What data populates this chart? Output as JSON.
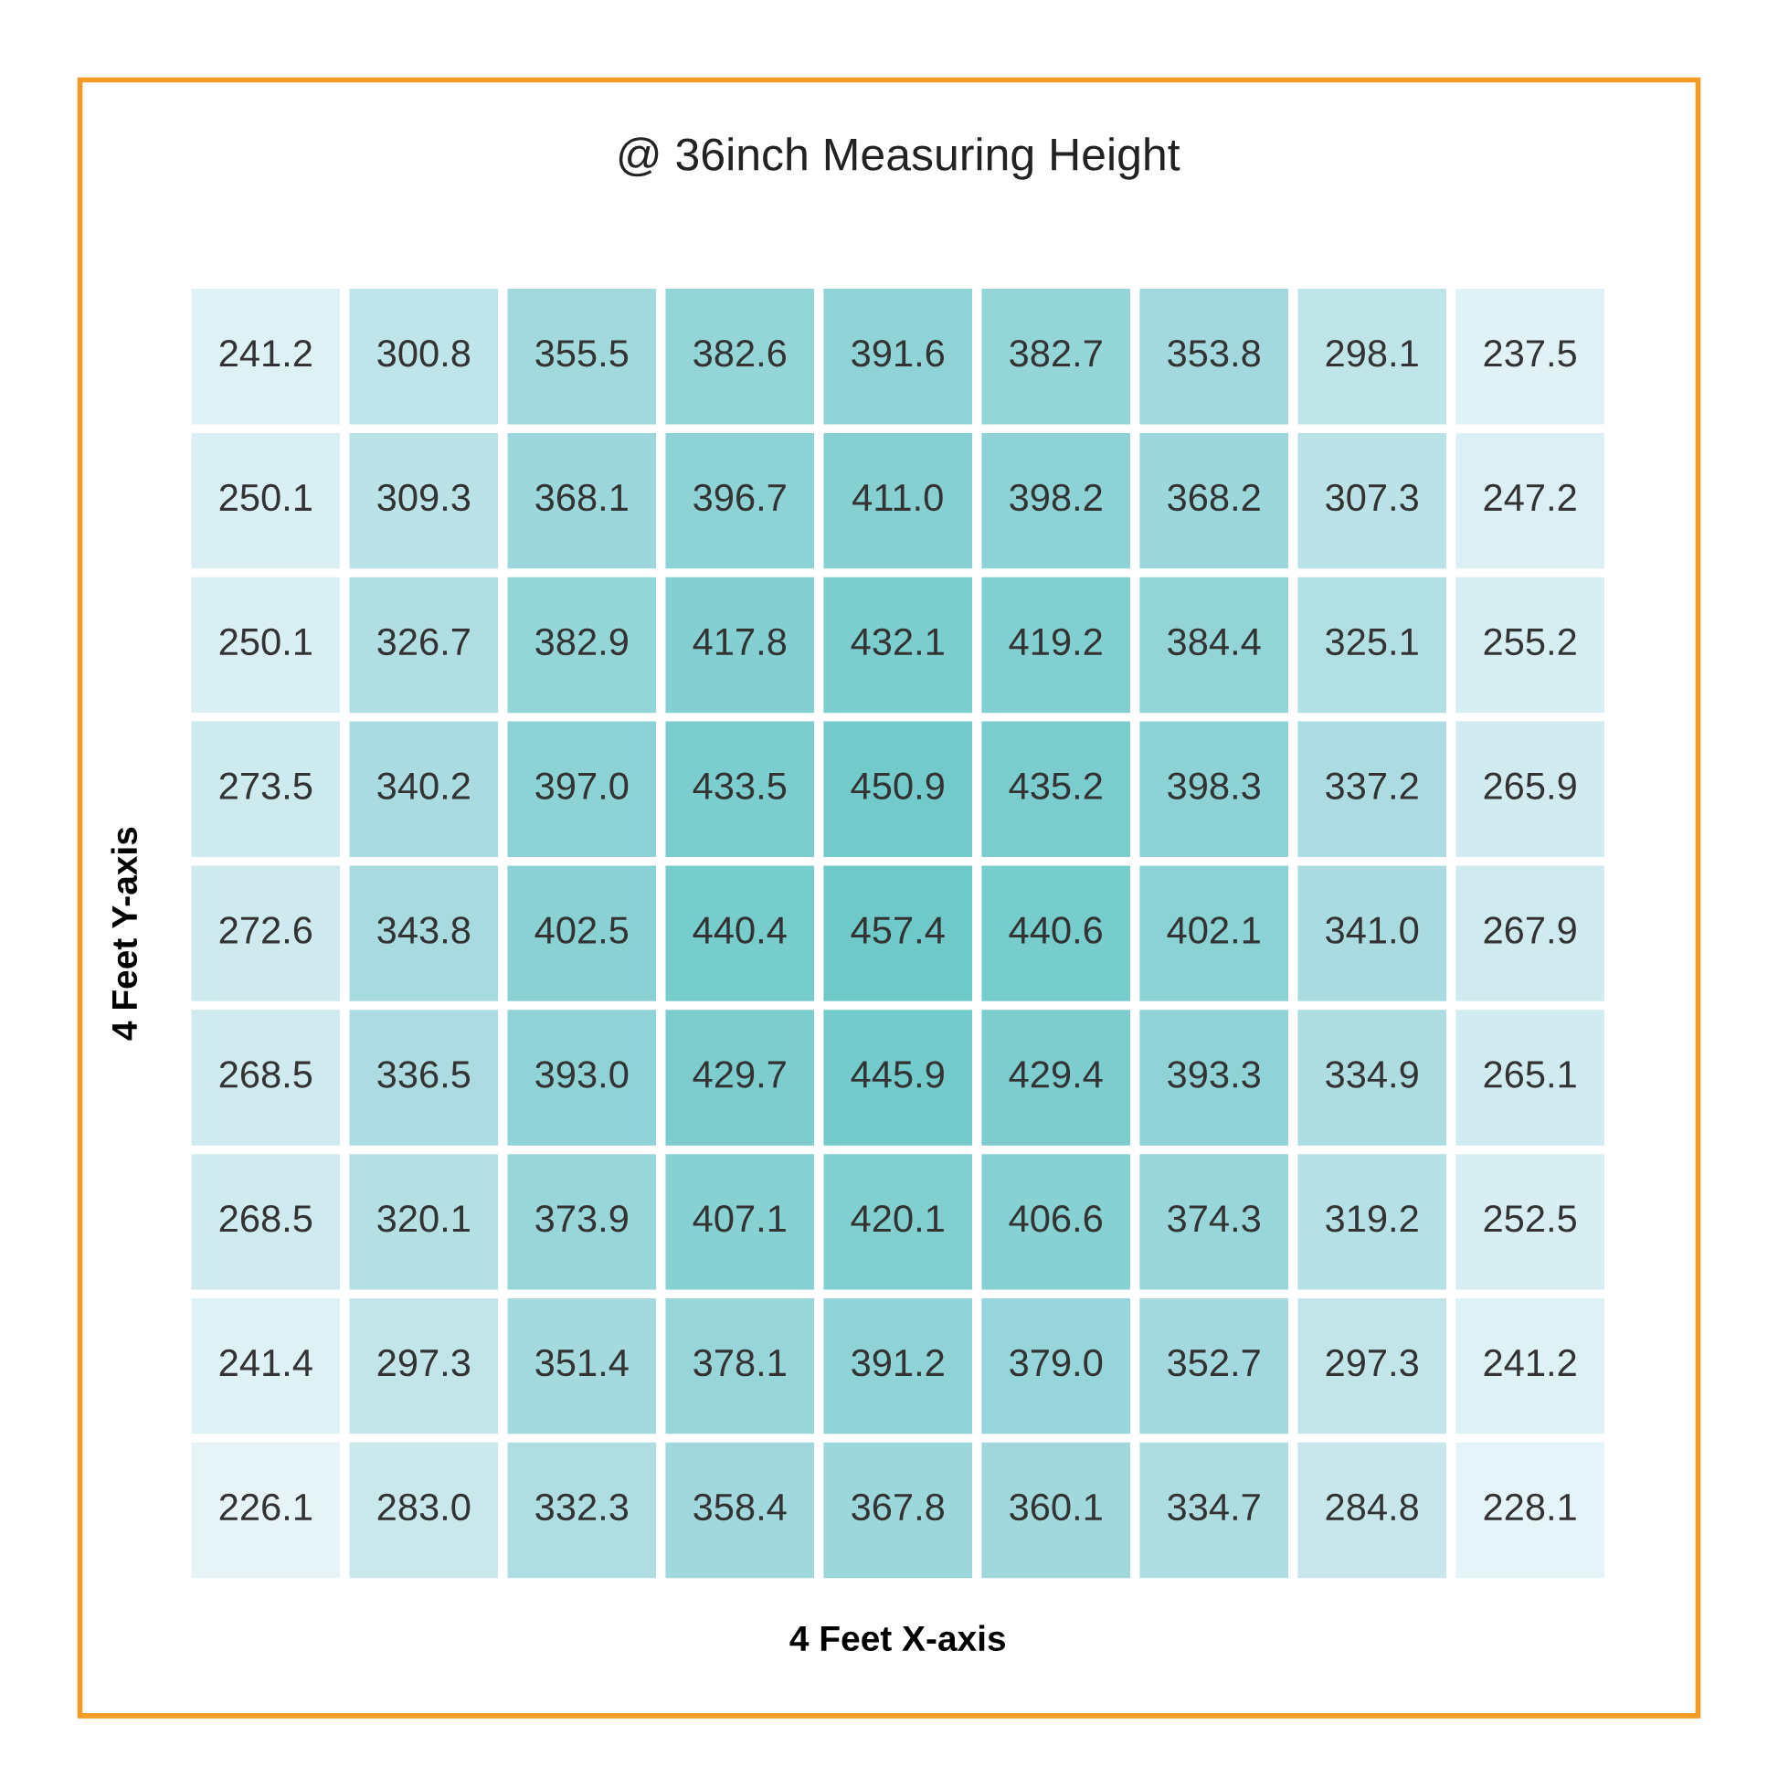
{
  "chart_data": {
    "type": "heatmap",
    "title": "@ 36inch Measuring Height",
    "xlabel": "4 Feet X-axis",
    "ylabel": "4 Feet Y-axis",
    "categories": [
      null,
      null,
      null,
      null,
      null,
      null,
      null,
      null,
      null
    ],
    "y_categories": [
      null,
      null,
      null,
      null,
      null,
      null,
      null,
      null,
      null
    ],
    "cells": [
      [
        241.2,
        300.8,
        355.5,
        382.6,
        391.6,
        382.7,
        353.8,
        298.1,
        237.5
      ],
      [
        250.1,
        309.3,
        368.1,
        396.7,
        411.0,
        398.2,
        368.2,
        307.3,
        247.2
      ],
      [
        250.1,
        326.7,
        382.9,
        417.8,
        432.1,
        419.2,
        384.4,
        325.1,
        255.2
      ],
      [
        273.5,
        340.2,
        397.0,
        433.5,
        450.9,
        435.2,
        398.3,
        337.2,
        265.9
      ],
      [
        272.6,
        343.8,
        402.5,
        440.4,
        457.4,
        440.6,
        402.1,
        341.0,
        267.9
      ],
      [
        268.5,
        336.5,
        393.0,
        429.7,
        445.9,
        429.4,
        393.3,
        334.9,
        265.1
      ],
      [
        268.5,
        320.1,
        373.9,
        407.1,
        420.1,
        406.6,
        374.3,
        319.2,
        252.5
      ],
      [
        241.4,
        297.3,
        351.4,
        378.1,
        391.2,
        379.0,
        352.7,
        297.3,
        241.2
      ],
      [
        226.1,
        283.0,
        332.3,
        358.4,
        367.8,
        360.1,
        334.7,
        284.8,
        228.1
      ]
    ],
    "cell_labels": [
      [
        "241.2",
        "300.8",
        "355.5",
        "382.6",
        "391.6",
        "382.7",
        "353.8",
        "298.1",
        "237.5"
      ],
      [
        "250.1",
        "309.3",
        "368.1",
        "396.7",
        "411.0",
        "398.2",
        "368.2",
        "307.3",
        "247.2"
      ],
      [
        "250.1",
        "326.7",
        "382.9",
        "417.8",
        "432.1",
        "419.2",
        "384.4",
        "325.1",
        "255.2"
      ],
      [
        "273.5",
        "340.2",
        "397.0",
        "433.5",
        "450.9",
        "435.2",
        "398.3",
        "337.2",
        "265.9"
      ],
      [
        "272.6",
        "343.8",
        "402.5",
        "440.4",
        "457.4",
        "440.6",
        "402.1",
        "341.0",
        "267.9"
      ],
      [
        "268.5",
        "336.5",
        "393.0",
        "429.7",
        "445.9",
        "429.4",
        "393.3",
        "334.9",
        "265.1"
      ],
      [
        "268.5",
        "320.1",
        "373.9",
        "407.1",
        "420.1",
        "406.6",
        "374.3",
        "319.2",
        "252.5"
      ],
      [
        "241.4",
        "297.3",
        "351.4",
        "378.1",
        "391.2",
        "379.0",
        "352.7",
        "297.3",
        "241.2"
      ],
      [
        "226.1",
        "283.0",
        "332.3",
        "358.4",
        "367.8",
        "360.1",
        "334.7",
        "284.8",
        "228.1"
      ]
    ]
  }
}
